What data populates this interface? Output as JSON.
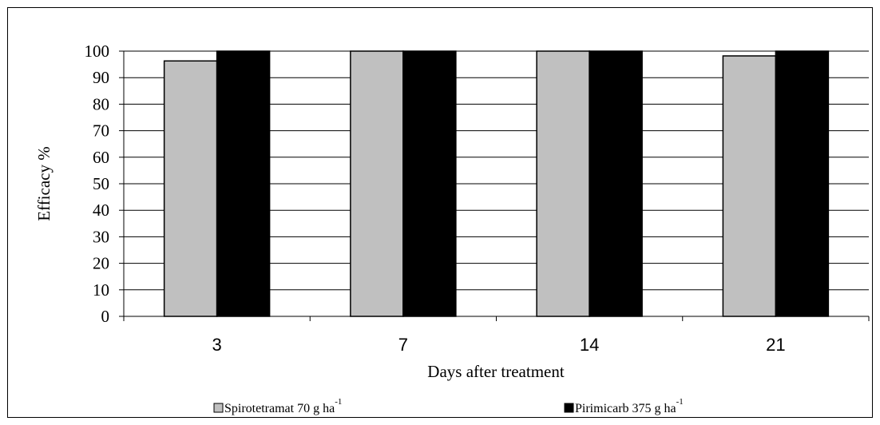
{
  "chart_data": {
    "type": "bar",
    "title": "",
    "xlabel": "Days after treatment",
    "ylabel": "Efficacy %",
    "ylim": [
      0,
      100
    ],
    "yticks": [
      0,
      10,
      20,
      30,
      40,
      50,
      60,
      70,
      80,
      90,
      100
    ],
    "categories": [
      "3",
      "7",
      "14",
      "21"
    ],
    "series": [
      {
        "name": "Spirotetramat 70 g ha",
        "unit_exponent": "-1",
        "color": "#c0c0c0",
        "values": [
          96.3,
          100,
          100,
          98.2
        ]
      },
      {
        "name": "Pirimicarb 375 g ha",
        "unit_exponent": "-1",
        "color": "#000000",
        "values": [
          100,
          100,
          100,
          100
        ]
      }
    ],
    "grid": true,
    "legend_position": "bottom"
  }
}
